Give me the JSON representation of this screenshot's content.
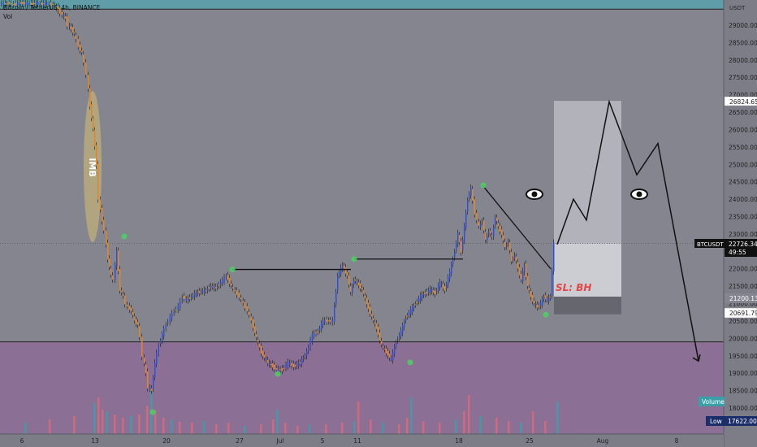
{
  "header": {
    "symbol_title": "Bitcoin / TetherUS, 4h, BINANCE",
    "volume_label": "Vol"
  },
  "price_axis": {
    "currency": "USDT",
    "ticks": [
      "29000.00",
      "28500.00",
      "28000.00",
      "27500.00",
      "27000.00",
      "26500.00",
      "26000.00",
      "25500.00",
      "25000.00",
      "24500.00",
      "24000.00",
      "23500.00",
      "23000.00",
      "22500.00",
      "22000.00",
      "21500.00",
      "21000.00",
      "20500.00",
      "20000.00",
      "19500.00",
      "19000.00",
      "18500.00",
      "18000.00"
    ],
    "badges": {
      "target": "26824.65",
      "symbol": "BTCUSDT",
      "last_price": "22726.34",
      "countdown": "49:55",
      "entry": "21200.13",
      "stop": "20691.79",
      "volume_tag": "Volume",
      "low_label": "Low",
      "low_value": "17622.00"
    }
  },
  "time_axis": {
    "labels": [
      "6",
      "13",
      "20",
      "27",
      "Jul",
      "5",
      "11",
      "18",
      "25",
      "Aug",
      "8"
    ]
  },
  "annotations": {
    "imb_label": "IMB",
    "sl_label": "SL: BH",
    "eye_icon": "eye-icon"
  },
  "colors": {
    "background": "#858590",
    "supply_zone": "#5f9ea8",
    "demand_zone": "#8c6f95",
    "bull": "#2f4fd8",
    "bear": "#e0852a",
    "vol_up": "#3aa0a8",
    "vol_down": "#d86a7a",
    "imb_highlight": "#cdbb73",
    "swing_marker": "#4ad163"
  },
  "chart_data": {
    "type": "candlestick",
    "ylim": [
      17600,
      29700
    ],
    "candles": {
      "x": [
        0,
        7,
        12,
        15,
        20,
        26,
        32,
        39,
        45,
        50,
        56,
        61,
        66,
        72,
        77,
        81,
        84,
        88,
        92,
        97,
        101,
        104,
        107,
        111,
        115,
        119,
        122,
        126,
        129,
        133,
        137,
        140,
        144,
        148,
        152,
        155,
        158,
        162,
        166,
        170,
        173,
        176,
        180,
        183,
        187,
        191,
        196,
        200,
        205,
        210,
        215,
        220,
        225,
        230,
        236,
        242,
        248,
        254,
        260,
        266,
        272,
        279,
        285,
        290,
        295,
        300,
        305,
        310,
        316,
        322,
        330,
        336,
        341,
        348,
        355,
        362,
        370,
        378,
        385,
        392,
        398,
        405,
        410,
        416,
        422,
        428,
        432,
        436,
        440,
        446,
        452,
        458,
        464,
        470,
        476,
        482,
        488,
        494,
        500,
        506,
        512,
        518,
        524,
        530,
        536,
        542,
        548,
        554,
        560,
        564,
        568,
        572,
        576,
        580,
        585,
        590,
        594,
        598,
        602,
        606,
        610,
        614,
        618,
        622,
        626,
        630,
        634,
        638,
        642,
        646,
        650,
        654,
        658,
        662,
        666,
        670,
        674,
        678,
        682,
        686
      ],
      "price": [
        29620,
        29610,
        29640,
        29590,
        29600,
        29640,
        29620,
        29600,
        29640,
        29600,
        29640,
        29600,
        29580,
        29450,
        29300,
        29200,
        29000,
        28900,
        28750,
        28400,
        28200,
        27900,
        27600,
        26700,
        26000,
        25000,
        24000,
        23400,
        23100,
        22300,
        21800,
        21700,
        22500,
        21400,
        21200,
        21000,
        20900,
        20800,
        20500,
        20400,
        20000,
        19500,
        19000,
        18600,
        18500,
        19300,
        19800,
        20100,
        20400,
        20600,
        20800,
        20900,
        21200,
        21100,
        21200,
        21300,
        21350,
        21380,
        21500,
        21450,
        21600,
        21800,
        21500,
        21350,
        21200,
        21000,
        20800,
        20500,
        20000,
        19600,
        19300,
        19200,
        19100,
        19100,
        19300,
        19200,
        19300,
        19600,
        20100,
        20200,
        20500,
        20500,
        20500,
        21800,
        22100,
        21800,
        21300,
        21700,
        21600,
        21400,
        21000,
        20600,
        20300,
        19800,
        19600,
        19400,
        19900,
        20200,
        20600,
        20800,
        21000,
        21200,
        21300,
        21400,
        21300,
        21600,
        21400,
        21900,
        22500,
        23000,
        22500,
        23200,
        24000,
        24300,
        23600,
        23200,
        23400,
        22800,
        23100,
        22900,
        23500,
        23200,
        23000,
        22600,
        22800,
        22200,
        22400,
        22000,
        21700,
        22100,
        21500,
        21200,
        21000,
        20900,
        21000,
        21200,
        21100,
        21200,
        22726
      ]
    },
    "horizontal_levels": [
      {
        "from_x": 285,
        "to_x": 432,
        "price": 21980
      },
      {
        "from_x": 436,
        "to_x": 570,
        "price": 22280
      }
    ],
    "trendline": {
      "x": [
        594,
        678
      ],
      "price": [
        24400,
        22000
      ]
    },
    "long_position": {
      "entry": 21200.13,
      "stop": 20691.79,
      "target": 26824.65,
      "current": 22726.34,
      "x_from": 682,
      "x_to": 765
    },
    "projection": {
      "x": [
        686,
        706,
        722,
        750,
        784,
        810,
        860
      ],
      "price": [
        22700,
        24000,
        23400,
        26800,
        24700,
        25600,
        19350
      ]
    },
    "zones": {
      "supply_top": 30000,
      "supply_bottom": 29460,
      "demand_top": 19900,
      "demand_bottom": 17600
    },
    "swing_points": [
      {
        "x": 153,
        "price": 22930
      },
      {
        "x": 286,
        "price": 21980
      },
      {
        "x": 436,
        "price": 22280
      },
      {
        "x": 595,
        "price": 24400
      },
      {
        "x": 188,
        "price": 17880
      },
      {
        "x": 342,
        "price": 18980
      },
      {
        "x": 505,
        "price": 19310
      },
      {
        "x": 672,
        "price": 20680
      }
    ],
    "volume": {
      "x": [
        30,
        60,
        90,
        115,
        120,
        125,
        130,
        140,
        150,
        160,
        170,
        180,
        185,
        190,
        200,
        210,
        220,
        235,
        250,
        265,
        280,
        300,
        320,
        335,
        340,
        350,
        365,
        380,
        400,
        420,
        435,
        440,
        455,
        470,
        490,
        500,
        505,
        520,
        540,
        560,
        570,
        576,
        590,
        610,
        625,
        640,
        655,
        670,
        685
      ],
      "value": [
        14,
        18,
        22,
        38,
        45,
        30,
        28,
        24,
        20,
        22,
        24,
        35,
        55,
        30,
        20,
        18,
        15,
        14,
        16,
        12,
        14,
        10,
        12,
        18,
        30,
        14,
        10,
        11,
        12,
        14,
        16,
        40,
        18,
        14,
        12,
        20,
        45,
        16,
        14,
        18,
        28,
        48,
        22,
        20,
        16,
        14,
        28,
        16,
        40
      ]
    }
  }
}
